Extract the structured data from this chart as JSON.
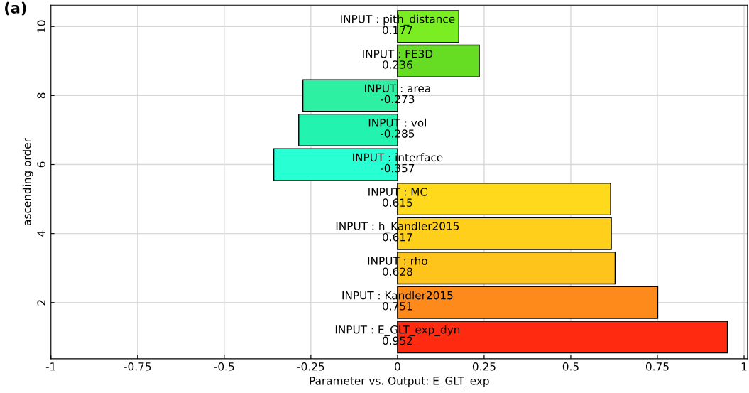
{
  "chart_data": {
    "type": "bar",
    "orientation": "horizontal",
    "title": "(a)",
    "xlabel": "Parameter vs. Output: E_GLT_exp",
    "ylabel": "ascending order",
    "x": [
      1,
      2,
      3,
      4,
      5,
      6,
      7,
      8,
      9,
      10
    ],
    "values": [
      0.952,
      0.751,
      0.628,
      0.617,
      0.615,
      -0.357,
      -0.285,
      -0.273,
      0.236,
      0.177
    ],
    "colors": [
      "#ff2a10",
      "#ff8a1c",
      "#ffc41c",
      "#ffcf1c",
      "#ffd91c",
      "#28ffd2",
      "#22f4b0",
      "#2ef0a2",
      "#66dd22",
      "#7aee22"
    ],
    "data_labels": true,
    "annotations": [
      {
        "text": "INPUT : E_GLT_exp_dyn",
        "y": 1
      },
      {
        "text": "INPUT : Kandler2015",
        "y": 2
      },
      {
        "text": "INPUT : rho",
        "y": 3
      },
      {
        "text": "INPUT : h_Kandler2015",
        "y": 4
      },
      {
        "text": "INPUT : MC",
        "y": 5
      },
      {
        "text": "INPUT : interface",
        "y": 6
      },
      {
        "text": "INPUT : vol",
        "y": 7
      },
      {
        "text": "INPUT : area",
        "y": 8
      },
      {
        "text": "INPUT : FE3D",
        "y": 9
      },
      {
        "text": "INPUT : pith_distance",
        "y": 10
      }
    ],
    "xlim": [
      -1,
      1.01
    ],
    "ylim": [
      0.37,
      10.62
    ],
    "xticks": [
      -1,
      {
        "value": -0.75,
        "label": "-0.75"
      },
      {
        "value": -0.5,
        "label": "-0.5"
      },
      {
        "value": -0.25,
        "label": "-0.25"
      },
      0,
      0.25,
      0.5,
      0.75,
      1
    ],
    "yticks": [
      2,
      4,
      6,
      8,
      10
    ],
    "grid": true
  }
}
